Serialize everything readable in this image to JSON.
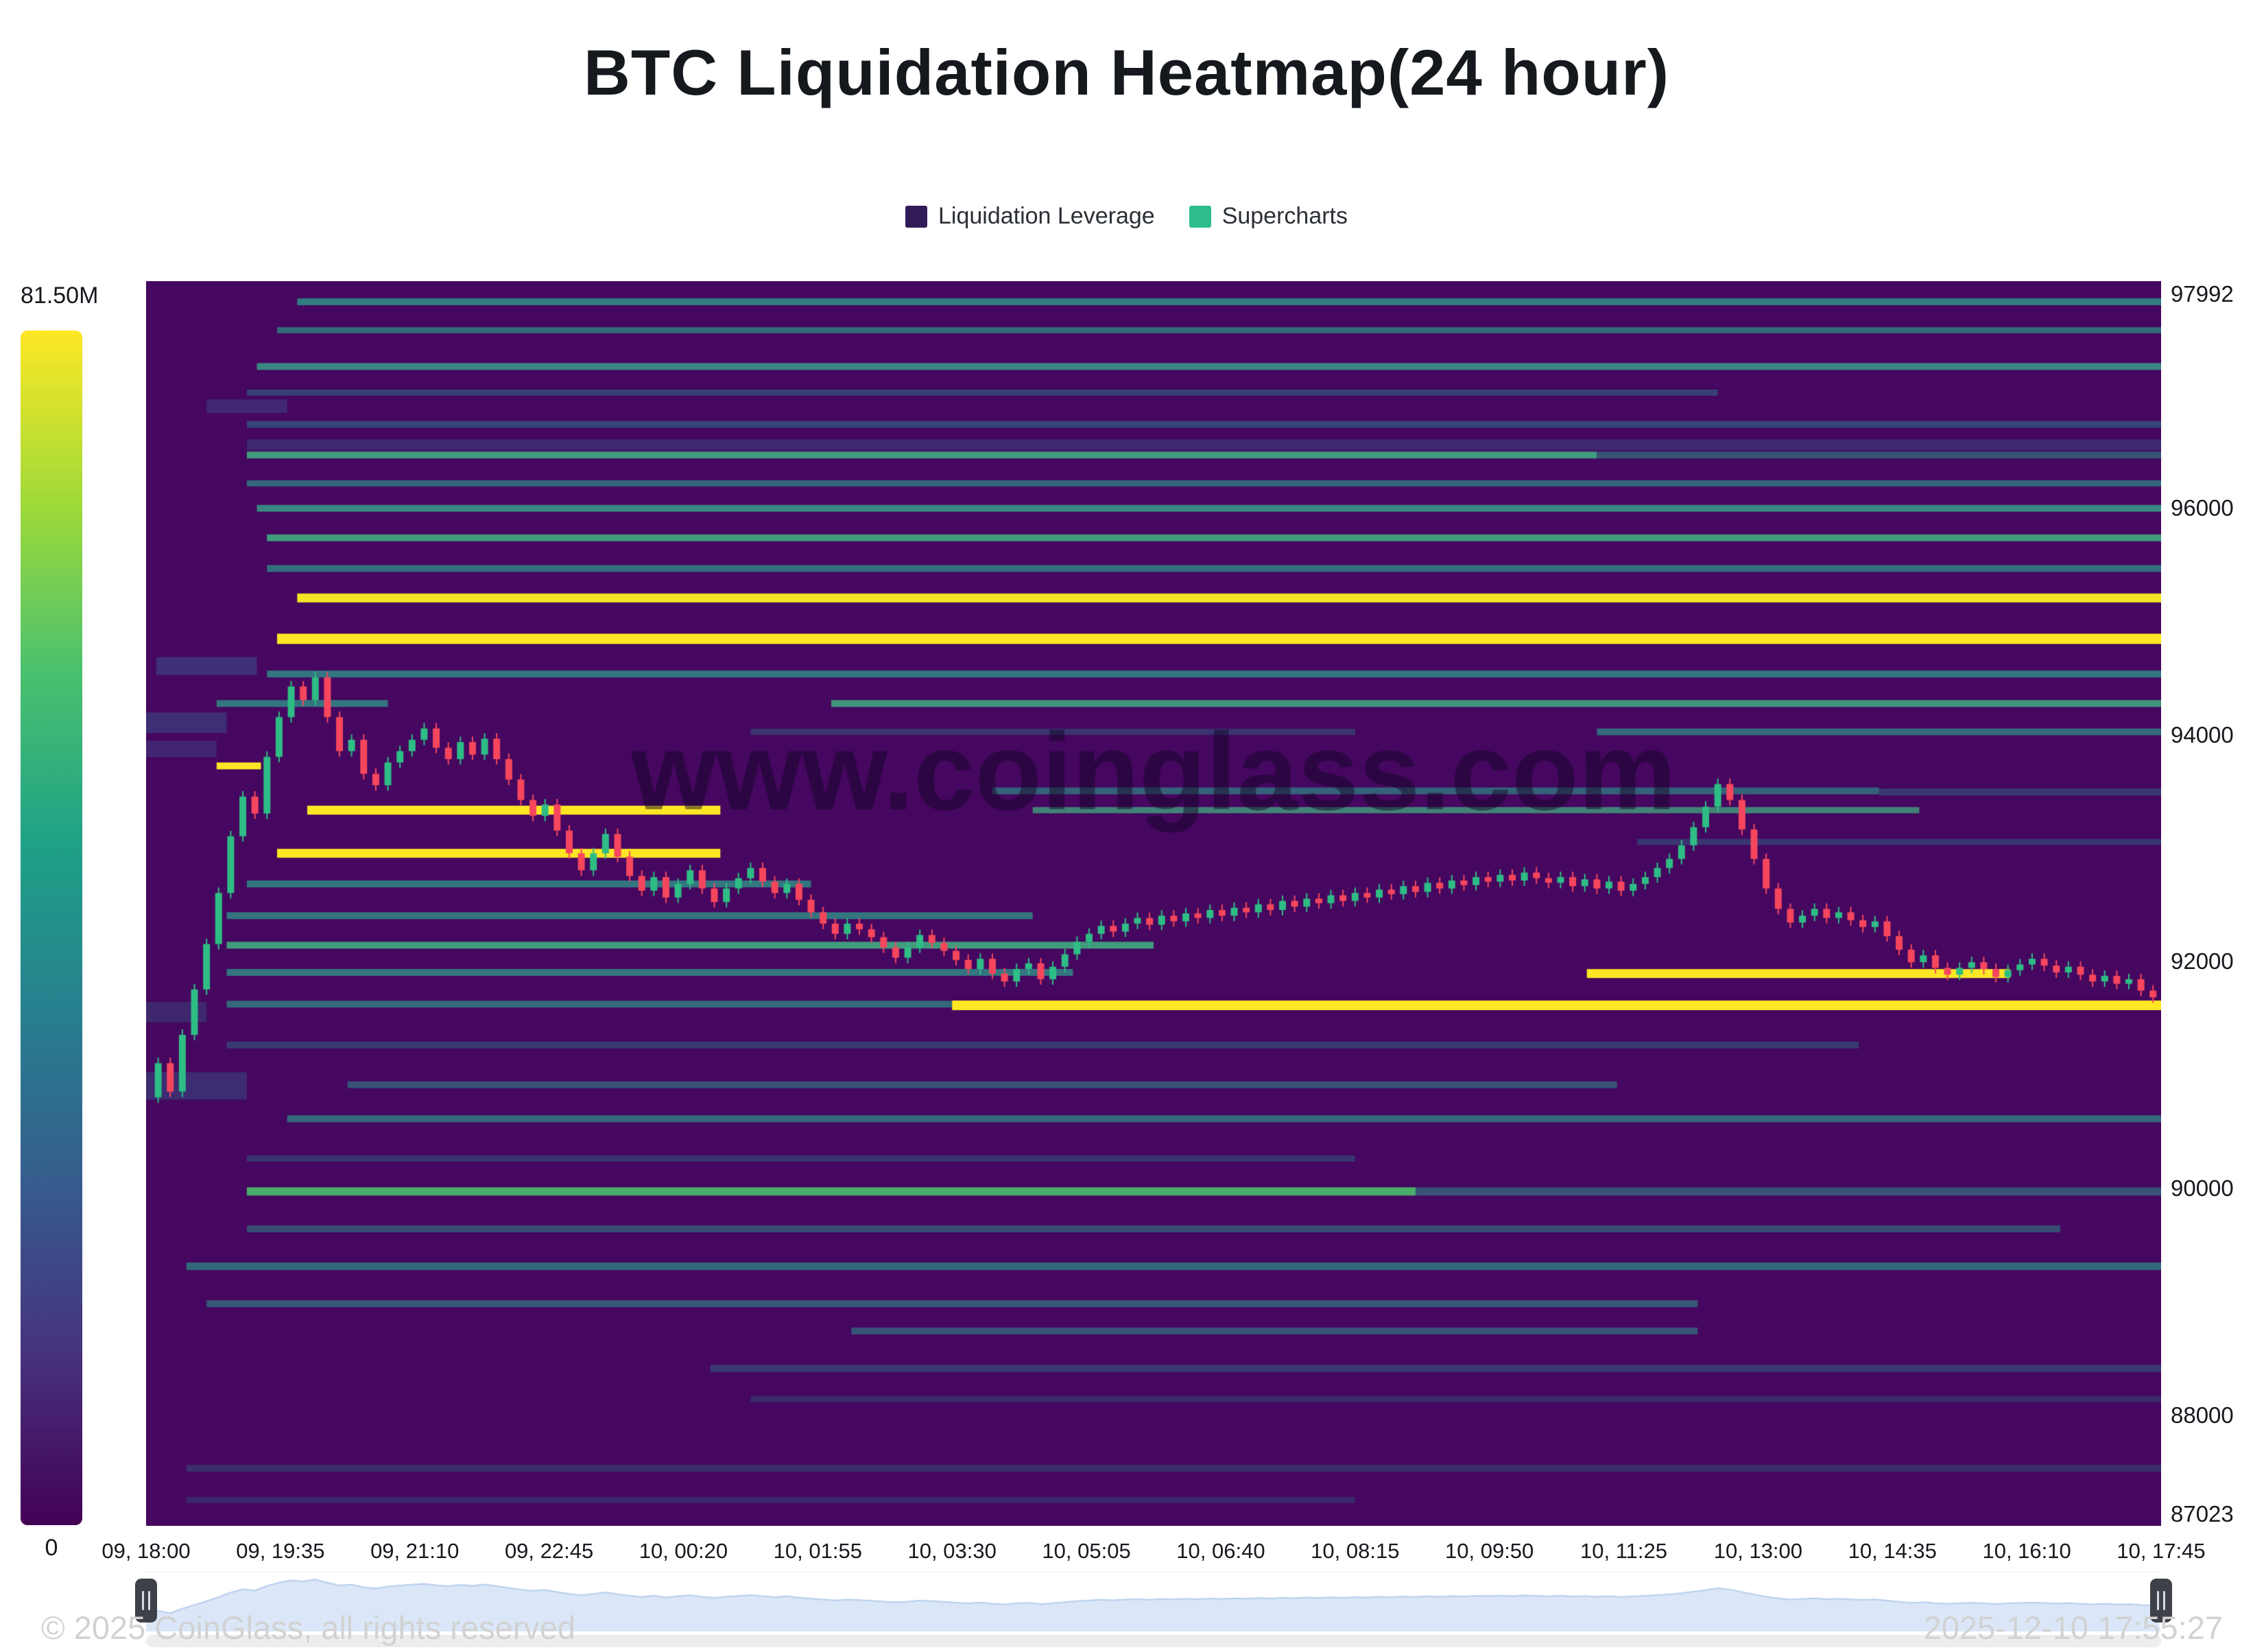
{
  "title": "BTC Liquidation Heatmap(24 hour)",
  "watermark": "www.coinglass.com",
  "legend": {
    "items": [
      {
        "label": "Liquidation Leverage",
        "color": "#311b57"
      },
      {
        "label": "Supercharts",
        "color": "#2dbd8a"
      }
    ]
  },
  "colorbar": {
    "max_label": "81.50M",
    "min_label": "0",
    "stops": [
      "#fde725",
      "#a0da39",
      "#4ac16d",
      "#1fa187",
      "#277f8e",
      "#365c8d",
      "#46327e",
      "#440154"
    ]
  },
  "footer": {
    "left": "© 2025 CoinGlass, all rights reserved",
    "right": "2025-12-10 17:55:27"
  },
  "chart_data": {
    "type": "heatmap",
    "title": "BTC Liquidation Heatmap(24 hour)",
    "background": "#45075f",
    "up_color": "#2ebd85",
    "down_color": "#f6465d",
    "y_range": [
      87023,
      97992
    ],
    "y_ticks": [
      {
        "value": 97992,
        "label": "97992"
      },
      {
        "value": 96000,
        "label": "96000"
      },
      {
        "value": 94000,
        "label": "94000"
      },
      {
        "value": 92000,
        "label": "92000"
      },
      {
        "value": 90000,
        "label": "90000"
      },
      {
        "value": 88000,
        "label": "88000"
      },
      {
        "value": 87023,
        "label": "87023"
      }
    ],
    "x_ticks": [
      "09, 18:00",
      "09, 19:35",
      "09, 21:10",
      "09, 22:45",
      "10, 00:20",
      "10, 01:55",
      "10, 03:30",
      "10, 05:05",
      "10, 06:40",
      "10, 08:15",
      "10, 09:50",
      "10, 11:25",
      "10, 13:00",
      "10, 14:35",
      "10, 16:10",
      "10, 17:45"
    ],
    "bands": [
      {
        "p": 97810,
        "x0": 0.075,
        "x1": 1,
        "c": "#2e9288",
        "a": 0.85,
        "h": 10
      },
      {
        "p": 97560,
        "x0": 0.065,
        "x1": 1,
        "c": "#2e9288",
        "a": 0.7,
        "h": 9
      },
      {
        "p": 97240,
        "x0": 0.055,
        "x1": 1,
        "c": "#38a88c",
        "a": 0.8,
        "h": 10
      },
      {
        "p": 97010,
        "x0": 0.05,
        "x1": 0.78,
        "c": "#2a7a8c",
        "a": 0.5,
        "h": 9
      },
      {
        "p": 96890,
        "x0": 0.03,
        "x1": 0.07,
        "c": "#3b528b",
        "a": 0.45,
        "h": 20
      },
      {
        "p": 96730,
        "x0": 0.05,
        "x1": 1,
        "c": "#2a7a8c",
        "a": 0.55,
        "h": 10
      },
      {
        "p": 96550,
        "x0": 0.05,
        "x1": 1,
        "c": "#31688e",
        "a": 0.35,
        "h": 16
      },
      {
        "p": 96460,
        "x0": 0.05,
        "x1": 0.72,
        "c": "#41b683",
        "a": 0.85,
        "h": 10
      },
      {
        "p": 96460,
        "x0": 0.72,
        "x1": 1,
        "c": "#2e9288",
        "a": 0.55,
        "h": 10
      },
      {
        "p": 96210,
        "x0": 0.05,
        "x1": 1,
        "c": "#2e9288",
        "a": 0.7,
        "h": 9
      },
      {
        "p": 95990,
        "x0": 0.055,
        "x1": 1,
        "c": "#38a88c",
        "a": 0.8,
        "h": 10
      },
      {
        "p": 95730,
        "x0": 0.06,
        "x1": 1,
        "c": "#41b683",
        "a": 0.85,
        "h": 10
      },
      {
        "p": 95460,
        "x0": 0.06,
        "x1": 1,
        "c": "#2e9288",
        "a": 0.75,
        "h": 10
      },
      {
        "p": 95200,
        "x0": 0.075,
        "x1": 1,
        "c": "#f2e626",
        "a": 1,
        "h": 13
      },
      {
        "p": 94840,
        "x0": 0.065,
        "x1": 1,
        "c": "#fde725",
        "a": 1,
        "h": 15
      },
      {
        "p": 94600,
        "x0": 0.005,
        "x1": 0.055,
        "c": "#3b528b",
        "a": 0.55,
        "h": 26
      },
      {
        "p": 94530,
        "x0": 0.06,
        "x1": 1,
        "c": "#2e9288",
        "a": 0.8,
        "h": 10
      },
      {
        "p": 94270,
        "x0": 0.035,
        "x1": 0.12,
        "c": "#2e9288",
        "a": 0.8,
        "h": 10
      },
      {
        "p": 94270,
        "x0": 0.34,
        "x1": 1,
        "c": "#41b683",
        "a": 0.8,
        "h": 10
      },
      {
        "p": 94100,
        "x0": 0,
        "x1": 0.04,
        "c": "#355f8d",
        "a": 0.45,
        "h": 30
      },
      {
        "p": 94020,
        "x0": 0.3,
        "x1": 0.6,
        "c": "#2a7a8c",
        "a": 0.4,
        "h": 9
      },
      {
        "p": 94020,
        "x0": 0.72,
        "x1": 1,
        "c": "#2e9288",
        "a": 0.7,
        "h": 10
      },
      {
        "p": 93870,
        "x0": 0,
        "x1": 0.035,
        "c": "#3b528b",
        "a": 0.4,
        "h": 24
      },
      {
        "p": 93720,
        "x0": 0.035,
        "x1": 0.057,
        "c": "#fde725",
        "a": 1,
        "h": 10
      },
      {
        "p": 93500,
        "x0": 0.42,
        "x1": 0.86,
        "c": "#2e9288",
        "a": 0.65,
        "h": 10
      },
      {
        "p": 93490,
        "x0": 0.86,
        "x1": 1,
        "c": "#2a7a8c",
        "a": 0.45,
        "h": 10
      },
      {
        "p": 93330,
        "x0": 0.08,
        "x1": 0.285,
        "c": "#fde725",
        "a": 1,
        "h": 13
      },
      {
        "p": 93330,
        "x0": 0.44,
        "x1": 0.88,
        "c": "#41b683",
        "a": 0.7,
        "h": 9
      },
      {
        "p": 93050,
        "x0": 0.74,
        "x1": 1,
        "c": "#2a7a8c",
        "a": 0.4,
        "h": 9
      },
      {
        "p": 92950,
        "x0": 0.065,
        "x1": 0.285,
        "c": "#fde725",
        "a": 1,
        "h": 13
      },
      {
        "p": 92680,
        "x0": 0.05,
        "x1": 0.33,
        "c": "#2e9288",
        "a": 0.8,
        "h": 10
      },
      {
        "p": 92400,
        "x0": 0.04,
        "x1": 0.44,
        "c": "#2e9288",
        "a": 0.8,
        "h": 10
      },
      {
        "p": 92140,
        "x0": 0.04,
        "x1": 0.5,
        "c": "#41b683",
        "a": 0.85,
        "h": 10
      },
      {
        "p": 91900,
        "x0": 0.04,
        "x1": 0.46,
        "c": "#2e9288",
        "a": 0.8,
        "h": 10
      },
      {
        "p": 91890,
        "x0": 0.715,
        "x1": 0.925,
        "c": "#fde725",
        "a": 1,
        "h": 13
      },
      {
        "p": 91620,
        "x0": 0.04,
        "x1": 0.4,
        "c": "#2e9288",
        "a": 0.7,
        "h": 10
      },
      {
        "p": 91610,
        "x0": 0.4,
        "x1": 1,
        "c": "#fde725",
        "a": 1,
        "h": 14
      },
      {
        "p": 91550,
        "x0": 0,
        "x1": 0.03,
        "c": "#33638d",
        "a": 0.35,
        "h": 30
      },
      {
        "p": 91260,
        "x0": 0.04,
        "x1": 0.85,
        "c": "#2a7a8c",
        "a": 0.45,
        "h": 10
      },
      {
        "p": 90900,
        "x0": 0,
        "x1": 0.05,
        "c": "#33638d",
        "a": 0.4,
        "h": 40
      },
      {
        "p": 90910,
        "x0": 0.1,
        "x1": 0.73,
        "c": "#2e9288",
        "a": 0.55,
        "h": 10
      },
      {
        "p": 90610,
        "x0": 0.07,
        "x1": 1,
        "c": "#2e9288",
        "a": 0.7,
        "h": 10
      },
      {
        "p": 90260,
        "x0": 0.05,
        "x1": 0.6,
        "c": "#2a7a8c",
        "a": 0.4,
        "h": 9
      },
      {
        "p": 89970,
        "x0": 0.05,
        "x1": 0.63,
        "c": "#4ac16d",
        "a": 0.9,
        "h": 12
      },
      {
        "p": 89970,
        "x0": 0.63,
        "x1": 1,
        "c": "#2e9288",
        "a": 0.55,
        "h": 12
      },
      {
        "p": 89640,
        "x0": 0.05,
        "x1": 0.95,
        "c": "#2e9288",
        "a": 0.5,
        "h": 10
      },
      {
        "p": 89310,
        "x0": 0.02,
        "x1": 1,
        "c": "#2e9288",
        "a": 0.7,
        "h": 11
      },
      {
        "p": 88980,
        "x0": 0.03,
        "x1": 0.77,
        "c": "#2e9288",
        "a": 0.6,
        "h": 10
      },
      {
        "p": 88740,
        "x0": 0.35,
        "x1": 0.77,
        "c": "#2e9288",
        "a": 0.55,
        "h": 10
      },
      {
        "p": 88410,
        "x0": 0.28,
        "x1": 1,
        "c": "#2a7a8c",
        "a": 0.45,
        "h": 10
      },
      {
        "p": 88140,
        "x0": 0.3,
        "x1": 1,
        "c": "#2a7a8c",
        "a": 0.3,
        "h": 9
      },
      {
        "p": 87530,
        "x0": 0.02,
        "x1": 1,
        "c": "#2a7a8c",
        "a": 0.35,
        "h": 10
      },
      {
        "p": 87250,
        "x0": 0.02,
        "x1": 0.6,
        "c": "#2a7a8c",
        "a": 0.28,
        "h": 9
      }
    ],
    "price_path": [
      [
        0,
        90800
      ],
      [
        0.006,
        91100
      ],
      [
        0.012,
        90850
      ],
      [
        0.018,
        91350
      ],
      [
        0.024,
        91750
      ],
      [
        0.03,
        92150
      ],
      [
        0.036,
        92600
      ],
      [
        0.042,
        93100
      ],
      [
        0.048,
        93450
      ],
      [
        0.054,
        93300
      ],
      [
        0.06,
        93800
      ],
      [
        0.066,
        94150
      ],
      [
        0.072,
        94420
      ],
      [
        0.078,
        94300
      ],
      [
        0.084,
        94500
      ],
      [
        0.09,
        94150
      ],
      [
        0.096,
        93850
      ],
      [
        0.102,
        93950
      ],
      [
        0.108,
        93650
      ],
      [
        0.114,
        93550
      ],
      [
        0.12,
        93750
      ],
      [
        0.126,
        93850
      ],
      [
        0.132,
        93950
      ],
      [
        0.138,
        94050
      ],
      [
        0.144,
        93880
      ],
      [
        0.15,
        93780
      ],
      [
        0.156,
        93930
      ],
      [
        0.162,
        93820
      ],
      [
        0.168,
        93960
      ],
      [
        0.174,
        93780
      ],
      [
        0.18,
        93600
      ],
      [
        0.186,
        93420
      ],
      [
        0.192,
        93280
      ],
      [
        0.198,
        93380
      ],
      [
        0.204,
        93150
      ],
      [
        0.21,
        92950
      ],
      [
        0.216,
        92800
      ],
      [
        0.222,
        92950
      ],
      [
        0.228,
        93120
      ],
      [
        0.234,
        92920
      ],
      [
        0.24,
        92750
      ],
      [
        0.246,
        92620
      ],
      [
        0.252,
        92740
      ],
      [
        0.258,
        92560
      ],
      [
        0.264,
        92680
      ],
      [
        0.27,
        92800
      ],
      [
        0.276,
        92640
      ],
      [
        0.282,
        92520
      ],
      [
        0.288,
        92640
      ],
      [
        0.294,
        92730
      ],
      [
        0.3,
        92820
      ],
      [
        0.306,
        92700
      ],
      [
        0.312,
        92600
      ],
      [
        0.318,
        92680
      ],
      [
        0.324,
        92540
      ],
      [
        0.33,
        92430
      ],
      [
        0.336,
        92330
      ],
      [
        0.342,
        92240
      ],
      [
        0.348,
        92330
      ],
      [
        0.354,
        92280
      ],
      [
        0.36,
        92210
      ],
      [
        0.366,
        92120
      ],
      [
        0.372,
        92030
      ],
      [
        0.378,
        92120
      ],
      [
        0.384,
        92230
      ],
      [
        0.39,
        92160
      ],
      [
        0.396,
        92090
      ],
      [
        0.402,
        92010
      ],
      [
        0.408,
        91930
      ],
      [
        0.414,
        92020
      ],
      [
        0.42,
        91890
      ],
      [
        0.426,
        91820
      ],
      [
        0.432,
        91930
      ],
      [
        0.438,
        91980
      ],
      [
        0.444,
        91840
      ],
      [
        0.45,
        91950
      ],
      [
        0.456,
        92060
      ],
      [
        0.462,
        92170
      ],
      [
        0.468,
        92240
      ],
      [
        0.474,
        92310
      ],
      [
        0.48,
        92260
      ],
      [
        0.486,
        92330
      ],
      [
        0.492,
        92380
      ],
      [
        0.498,
        92320
      ],
      [
        0.504,
        92400
      ],
      [
        0.51,
        92350
      ],
      [
        0.516,
        92420
      ],
      [
        0.522,
        92380
      ],
      [
        0.528,
        92450
      ],
      [
        0.534,
        92400
      ],
      [
        0.54,
        92470
      ],
      [
        0.546,
        92430
      ],
      [
        0.552,
        92500
      ],
      [
        0.558,
        92450
      ],
      [
        0.564,
        92530
      ],
      [
        0.57,
        92480
      ],
      [
        0.576,
        92550
      ],
      [
        0.582,
        92510
      ],
      [
        0.588,
        92580
      ],
      [
        0.594,
        92530
      ],
      [
        0.6,
        92600
      ],
      [
        0.606,
        92560
      ],
      [
        0.612,
        92630
      ],
      [
        0.618,
        92590
      ],
      [
        0.624,
        92660
      ],
      [
        0.63,
        92610
      ],
      [
        0.636,
        92690
      ],
      [
        0.642,
        92640
      ],
      [
        0.648,
        92710
      ],
      [
        0.654,
        92670
      ],
      [
        0.66,
        92740
      ],
      [
        0.666,
        92700
      ],
      [
        0.672,
        92760
      ],
      [
        0.678,
        92710
      ],
      [
        0.684,
        92780
      ],
      [
        0.69,
        92730
      ],
      [
        0.696,
        92690
      ],
      [
        0.702,
        92740
      ],
      [
        0.708,
        92660
      ],
      [
        0.714,
        92720
      ],
      [
        0.72,
        92640
      ],
      [
        0.726,
        92700
      ],
      [
        0.732,
        92620
      ],
      [
        0.738,
        92680
      ],
      [
        0.744,
        92740
      ],
      [
        0.75,
        92820
      ],
      [
        0.756,
        92900
      ],
      [
        0.762,
        93020
      ],
      [
        0.768,
        93180
      ],
      [
        0.774,
        93360
      ],
      [
        0.78,
        93560
      ],
      [
        0.786,
        93420
      ],
      [
        0.792,
        93160
      ],
      [
        0.798,
        92900
      ],
      [
        0.804,
        92640
      ],
      [
        0.81,
        92460
      ],
      [
        0.816,
        92340
      ],
      [
        0.822,
        92400
      ],
      [
        0.828,
        92460
      ],
      [
        0.834,
        92380
      ],
      [
        0.84,
        92430
      ],
      [
        0.846,
        92360
      ],
      [
        0.852,
        92300
      ],
      [
        0.858,
        92350
      ],
      [
        0.864,
        92220
      ],
      [
        0.87,
        92100
      ],
      [
        0.876,
        91990
      ],
      [
        0.882,
        92050
      ],
      [
        0.888,
        91940
      ],
      [
        0.894,
        91880
      ],
      [
        0.9,
        91940
      ],
      [
        0.906,
        91990
      ],
      [
        0.912,
        91930
      ],
      [
        0.918,
        91860
      ],
      [
        0.924,
        91920
      ],
      [
        0.93,
        91970
      ],
      [
        0.936,
        92020
      ],
      [
        0.942,
        91960
      ],
      [
        0.948,
        91900
      ],
      [
        0.954,
        91950
      ],
      [
        0.96,
        91880
      ],
      [
        0.966,
        91820
      ],
      [
        0.972,
        91870
      ],
      [
        0.978,
        91800
      ],
      [
        0.984,
        91840
      ],
      [
        0.99,
        91740
      ],
      [
        0.996,
        91680
      ]
    ],
    "navigator": {
      "fill": "#dbe7f8",
      "stroke": "#b6cdee",
      "bg": "#ffffff"
    }
  }
}
